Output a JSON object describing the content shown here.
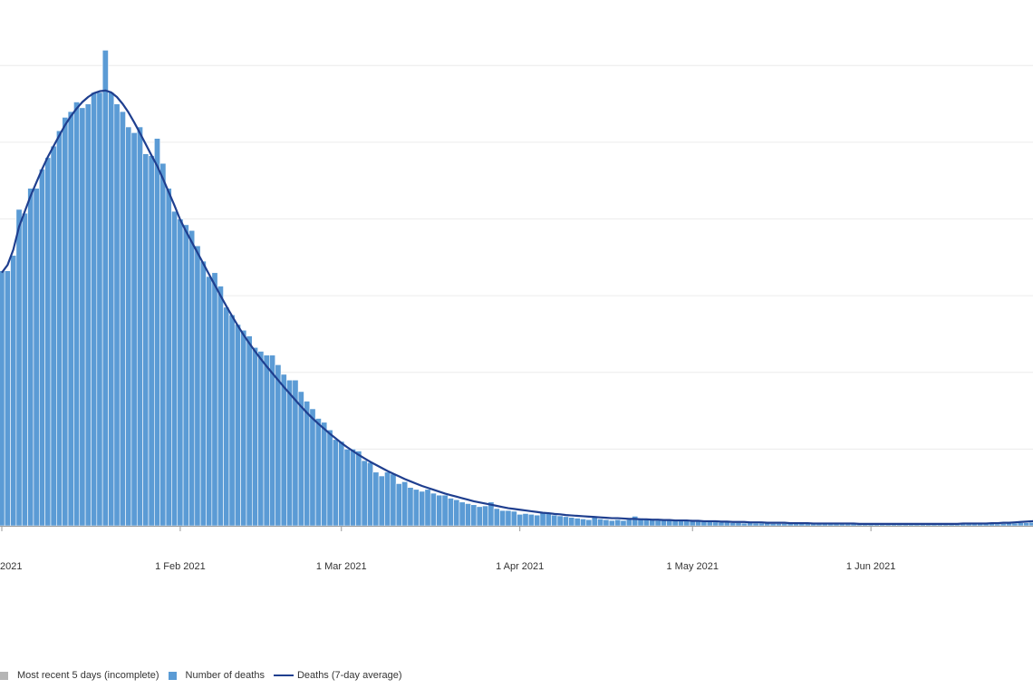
{
  "colors": {
    "bar": "#5b9bd5",
    "bar_stroke": "#ffffff",
    "line": "#1f3f8f",
    "incomplete": "#b5b5b5",
    "grid": "#ececec",
    "axis": "#999999"
  },
  "chart_data": {
    "type": "bar",
    "title": "",
    "xlabel": "",
    "ylabel": "",
    "grid": true,
    "legend_position": "bottom-left",
    "x_start": "2021-01-01",
    "x_end": "2021-06-29",
    "x_ticks": [
      {
        "date": "2021-01-01",
        "label": "2021"
      },
      {
        "date": "2021-02-01",
        "label": "1 Feb 2021"
      },
      {
        "date": "2021-03-01",
        "label": "1 Mar 2021"
      },
      {
        "date": "2021-04-01",
        "label": "1 Apr 2021"
      },
      {
        "date": "2021-05-01",
        "label": "1 May 2021"
      },
      {
        "date": "2021-06-01",
        "label": "1 Jun 2021"
      }
    ],
    "y_gridlines": [
      0,
      200,
      400,
      600,
      800,
      1000,
      1200
    ],
    "ylim": [
      0,
      1300
    ],
    "series": [
      {
        "name": "Number of deaths",
        "type": "bar",
        "values": [
          665,
          665,
          705,
          825,
          815,
          880,
          880,
          930,
          960,
          990,
          1030,
          1065,
          1080,
          1105,
          1090,
          1100,
          1130,
          1130,
          1240,
          1130,
          1100,
          1080,
          1040,
          1025,
          1040,
          970,
          965,
          1010,
          945,
          880,
          820,
          800,
          785,
          770,
          730,
          690,
          650,
          660,
          625,
          570,
          550,
          525,
          510,
          495,
          465,
          455,
          445,
          445,
          420,
          395,
          380,
          380,
          350,
          325,
          305,
          280,
          270,
          250,
          225,
          220,
          200,
          200,
          195,
          170,
          165,
          140,
          130,
          140,
          135,
          110,
          115,
          100,
          95,
          90,
          95,
          85,
          80,
          80,
          72,
          68,
          62,
          58,
          55,
          50,
          52,
          62,
          45,
          40,
          40,
          38,
          30,
          32,
          30,
          28,
          35,
          34,
          28,
          26,
          24,
          22,
          20,
          18,
          16,
          24,
          18,
          16,
          14,
          16,
          14,
          16,
          25,
          20,
          18,
          16,
          14,
          16,
          15,
          15,
          14,
          13,
          14,
          12,
          11,
          11,
          10,
          9,
          9,
          8,
          8,
          7,
          8,
          7,
          7,
          10,
          6,
          6,
          6,
          6,
          7,
          7,
          6,
          5,
          5,
          5,
          5,
          6,
          5,
          5,
          5,
          6,
          5,
          5,
          6,
          5,
          5,
          5,
          6,
          5,
          5,
          5,
          5,
          6,
          6,
          5,
          5,
          5,
          5,
          6,
          5,
          6,
          5,
          6,
          6,
          5,
          6,
          7,
          7,
          8,
          8,
          9,
          10,
          12,
          12,
          14,
          16,
          18,
          17,
          20
        ]
      },
      {
        "name": "Deaths (7-day average)",
        "type": "line",
        "values": [
          660,
          680,
          720,
          780,
          820,
          860,
          895,
          930,
          962,
          990,
          1018,
          1045,
          1068,
          1088,
          1105,
          1118,
          1128,
          1133,
          1135,
          1130,
          1118,
          1100,
          1078,
          1052,
          1024,
          995,
          966,
          938,
          905,
          870,
          835,
          798,
          768,
          740,
          712,
          684,
          656,
          628,
          600,
          573,
          547,
          522,
          498,
          476,
          455,
          435,
          416,
          398,
          380,
          362,
          345,
          328,
          311,
          295,
          280,
          266,
          253,
          240,
          228,
          216,
          205,
          195,
          185,
          176,
          167,
          159,
          151,
          143,
          136,
          129,
          122,
          116,
          110,
          104,
          99,
          94,
          89,
          84,
          80,
          76,
          72,
          68,
          64,
          61,
          58,
          55,
          52,
          49,
          46,
          44,
          42,
          40,
          38,
          36,
          34,
          33,
          31,
          30,
          28,
          27,
          26,
          25,
          24,
          23,
          22,
          21,
          20,
          20,
          19,
          18,
          18,
          17,
          17,
          16,
          16,
          15,
          15,
          14,
          14,
          14,
          13,
          13,
          12,
          12,
          12,
          11,
          11,
          10,
          10,
          10,
          9,
          9,
          9,
          8,
          8,
          8,
          8,
          7,
          7,
          7,
          7,
          6,
          6,
          6,
          6,
          6,
          6,
          6,
          6,
          5,
          5,
          5,
          5,
          5,
          5,
          5,
          5,
          5,
          5,
          5,
          5,
          5,
          5,
          5,
          5,
          5,
          5,
          6,
          6,
          6,
          6,
          6,
          7,
          7,
          8,
          8,
          9,
          10,
          11,
          12,
          13,
          14,
          15,
          16,
          17,
          18,
          19,
          20
        ]
      },
      {
        "name": "Most recent 5 days (incomplete)",
        "type": "bar",
        "values": []
      }
    ]
  },
  "legend": [
    {
      "label": "Most recent 5 days (incomplete)",
      "kind": "box",
      "color": "#b5b5b5"
    },
    {
      "label": "Number of deaths",
      "kind": "box",
      "color": "#5b9bd5"
    },
    {
      "label": "Deaths (7-day average)",
      "kind": "line",
      "color": "#1f3f8f"
    }
  ]
}
